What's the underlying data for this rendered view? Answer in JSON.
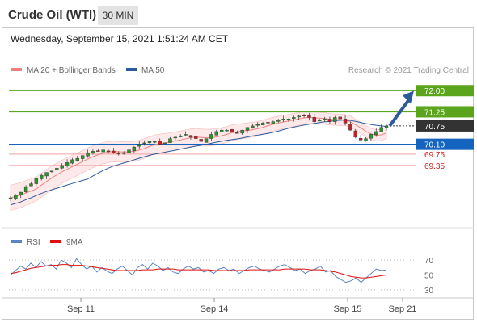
{
  "header": {
    "title": "Crude Oil (WTI)",
    "timeframe": "30 MIN",
    "datetime": "Wednesday, September 15, 2021 1:51:24 AM CET"
  },
  "legend": {
    "ma20_label": "MA 20 + Bollinger Bands",
    "ma20_color": "#f08080",
    "ma50_label": "MA 50",
    "ma50_color": "#2c5a9a",
    "credit": "Research © 2021 Trading Central"
  },
  "colors": {
    "resistance": "#5aa51c",
    "support": "#1565c0",
    "support_light": "#d81b1b",
    "price_badge": "#333333",
    "arrow": "#2c5a9a",
    "candle_up": "#2f8f2f",
    "candle_down": "#c02424",
    "rsi_line": "#5b84c4",
    "rsi_ma": "#e01010"
  },
  "chart_data": [
    {
      "type": "candlestick",
      "title": "",
      "price_levels": [
        {
          "label": "72.00",
          "value": 72.0,
          "kind": "resistance"
        },
        {
          "label": "71.25",
          "value": 71.25,
          "kind": "resistance"
        },
        {
          "label": "70.75",
          "value": 70.75,
          "kind": "last"
        },
        {
          "label": "70.10",
          "value": 70.1,
          "kind": "support"
        },
        {
          "label": "69.75",
          "value": 69.75,
          "kind": "support_light"
        },
        {
          "label": "69.35",
          "value": 69.35,
          "kind": "support_light"
        }
      ],
      "ylim": [
        67.2,
        72.35
      ],
      "x_ticks": [
        "Sep 11",
        "Sep 14",
        "Sep 15",
        "Sep 21"
      ],
      "close_series": [
        68.2,
        68.3,
        68.4,
        68.6,
        68.7,
        68.9,
        69.0,
        69.1,
        69.15,
        69.25,
        69.35,
        69.45,
        69.55,
        69.6,
        69.7,
        69.8,
        69.85,
        69.85,
        69.9,
        69.85,
        69.8,
        69.75,
        69.8,
        69.9,
        70.0,
        70.1,
        70.15,
        70.2,
        70.2,
        70.1,
        70.15,
        70.3,
        70.35,
        70.4,
        70.45,
        70.35,
        70.3,
        70.2,
        70.3,
        70.45,
        70.55,
        70.6,
        70.6,
        70.55,
        70.5,
        70.6,
        70.7,
        70.75,
        70.8,
        70.85,
        70.85,
        70.9,
        70.95,
        71.0,
        71.0,
        71.05,
        71.1,
        71.1,
        71.05,
        70.9,
        70.95,
        71.0,
        70.9,
        71.05,
        71.0,
        70.85,
        70.6,
        70.35,
        70.25,
        70.3,
        70.45,
        70.55,
        70.7,
        70.75
      ],
      "projection": {
        "from": 70.75,
        "to": 72.0
      },
      "series": [
        {
          "name": "MA 20 + Bollinger Bands"
        },
        {
          "name": "MA 50"
        }
      ]
    },
    {
      "type": "line",
      "title": "",
      "ylim": [
        20,
        80
      ],
      "y_ticks": [
        70,
        50,
        30
      ],
      "rsi": [
        50,
        56,
        62,
        58,
        66,
        60,
        68,
        62,
        64,
        58,
        70,
        66,
        60,
        72,
        64,
        58,
        62,
        54,
        60,
        55,
        52,
        58,
        62,
        56,
        50,
        60,
        64,
        58,
        66,
        62,
        56,
        60,
        54,
        52,
        58,
        62,
        58,
        60,
        54,
        56,
        52,
        58,
        60,
        56,
        58,
        52,
        56,
        60,
        62,
        58,
        56,
        54,
        58,
        62,
        64,
        60,
        56,
        58,
        52,
        56,
        58,
        62,
        54,
        56,
        48,
        44,
        40,
        42,
        46,
        40,
        46,
        52,
        58,
        56,
        57
      ],
      "rsi_ma": [
        52,
        53,
        55,
        57,
        59,
        60,
        61,
        62,
        63,
        63,
        64,
        64,
        63,
        63,
        63,
        62,
        61,
        60,
        59,
        58,
        57,
        56,
        56,
        56,
        56,
        56,
        57,
        57,
        57,
        58,
        58,
        58,
        58,
        57,
        57,
        57,
        57,
        57,
        57,
        57,
        56,
        56,
        56,
        56,
        56,
        56,
        56,
        57,
        57,
        57,
        57,
        57,
        57,
        57,
        58,
        58,
        58,
        58,
        58,
        57,
        57,
        57,
        56,
        55,
        54,
        52,
        50,
        48,
        47,
        46,
        46,
        47,
        48,
        49,
        50
      ],
      "series": [
        {
          "name": "RSI"
        },
        {
          "name": "9MA"
        }
      ]
    }
  ]
}
